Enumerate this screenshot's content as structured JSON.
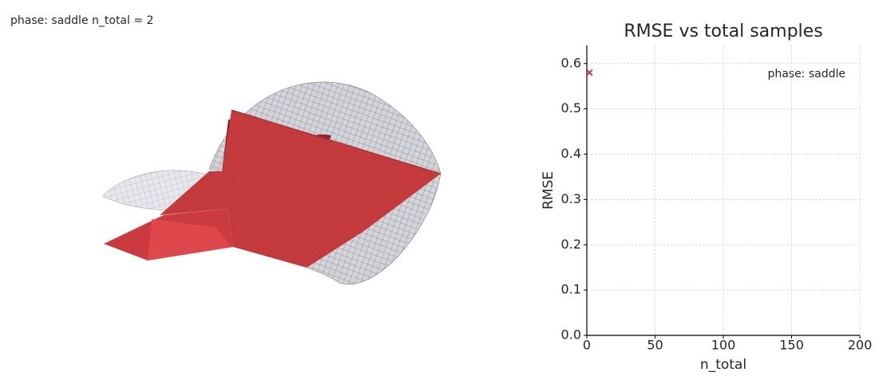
{
  "chart_data": [
    {
      "type": "surface3d",
      "title": "phase: saddle   n_total = 2"
    },
    {
      "type": "scatter",
      "title": "RMSE vs total samples",
      "xlabel": "n_total",
      "ylabel": "RMSE",
      "annotation": "phase: saddle",
      "x": [
        2
      ],
      "series": [
        {
          "color": "#d62728",
          "marker": "x",
          "values": [
            0.58
          ]
        }
      ],
      "xlim": [
        0,
        200
      ],
      "xticks": [
        0,
        50,
        100,
        150,
        200
      ],
      "ylim": [
        0,
        0.64
      ],
      "yticks": [
        {
          "value": 0,
          "label": "0.0"
        },
        0.1,
        0.2,
        0.3,
        0.4,
        0.5,
        0.6
      ],
      "grid": true
    }
  ]
}
